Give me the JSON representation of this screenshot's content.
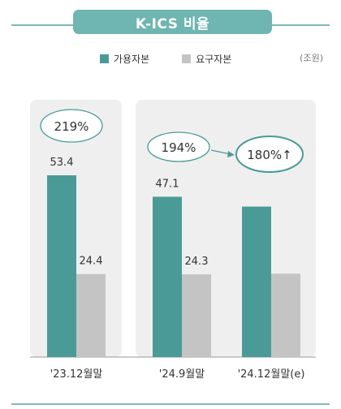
{
  "title": "K-ICS 비율",
  "unit": "(조원)",
  "colors": {
    "available": "#4a9b98",
    "required": "#c4c4c4",
    "accent": "#6fb5b1",
    "panel": "#efefef",
    "ellipse_stroke": "#4a9b98"
  },
  "chart_data": {
    "type": "bar",
    "categories": [
      "'23.12월말",
      "'24.9월말",
      "'24.12월말(e)"
    ],
    "series": [
      {
        "name": "가용자본",
        "values": [
          53.4,
          47.1,
          44.2
        ],
        "labels": [
          "53.4",
          "47.1",
          ""
        ]
      },
      {
        "name": "요구자본",
        "values": [
          24.4,
          24.3,
          24.5
        ],
        "labels": [
          "24.4",
          "24.3",
          ""
        ]
      }
    ],
    "ylim": [
      0,
      60
    ],
    "ratios": [
      {
        "text": "219%"
      },
      {
        "text": "194%"
      },
      {
        "text": "180%↑"
      }
    ],
    "legend_position": "top"
  }
}
